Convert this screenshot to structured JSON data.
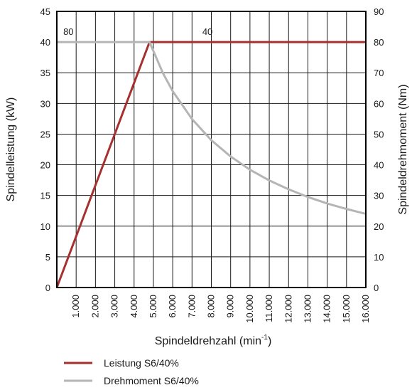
{
  "chart_data": {
    "type": "line",
    "xlabel": "Spindeldrehzahl (min",
    "xlabel_sup": "-1",
    "xlabel_tail": ")",
    "ylabel_left": "Spindelleistung (kW)",
    "ylabel_right": "Spindeldrehmoment (Nm)",
    "xlim": [
      0,
      16000
    ],
    "ylim_left": [
      0,
      45
    ],
    "ylim_right": [
      0,
      90
    ],
    "x_ticks": [
      1000,
      2000,
      3000,
      4000,
      5000,
      6000,
      7000,
      8000,
      9000,
      10000,
      11000,
      12000,
      13000,
      14000,
      15000,
      16000
    ],
    "x_tick_labels": [
      "1.000",
      "2.000",
      "3.000",
      "4.000",
      "5.000",
      "6.000",
      "7.000",
      "8.000",
      "9.000",
      "10.000",
      "11.000",
      "12.000",
      "13.000",
      "14.000",
      "15.000",
      "16.000"
    ],
    "y_left_ticks": [
      0,
      5,
      10,
      15,
      20,
      25,
      30,
      35,
      40,
      45
    ],
    "y_right_ticks": [
      0,
      10,
      20,
      30,
      40,
      50,
      60,
      70,
      80,
      90
    ],
    "grid": true,
    "legend_position": "bottom-left",
    "series": [
      {
        "name": "Leistung S6/40%",
        "axis": "left",
        "color": "#a5312f",
        "x": [
          0,
          4800,
          16000
        ],
        "y": [
          0,
          40,
          40
        ]
      },
      {
        "name": "Drehmoment S6/40%",
        "axis": "right",
        "color": "#b5b5b5",
        "x": [
          0,
          4800,
          5500,
          6000,
          7000,
          8000,
          9000,
          10000,
          11000,
          12000,
          13000,
          14000,
          15000,
          16000
        ],
        "y": [
          80,
          80,
          69.8,
          64,
          54.9,
          48,
          42.7,
          38.4,
          34.9,
          32,
          29.5,
          27.4,
          25.6,
          24
        ]
      }
    ],
    "annotations": [
      {
        "text": "80",
        "x": 600,
        "y_left": 41.2
      },
      {
        "text": "40",
        "x": 7800,
        "y_left": 41.2
      }
    ]
  }
}
